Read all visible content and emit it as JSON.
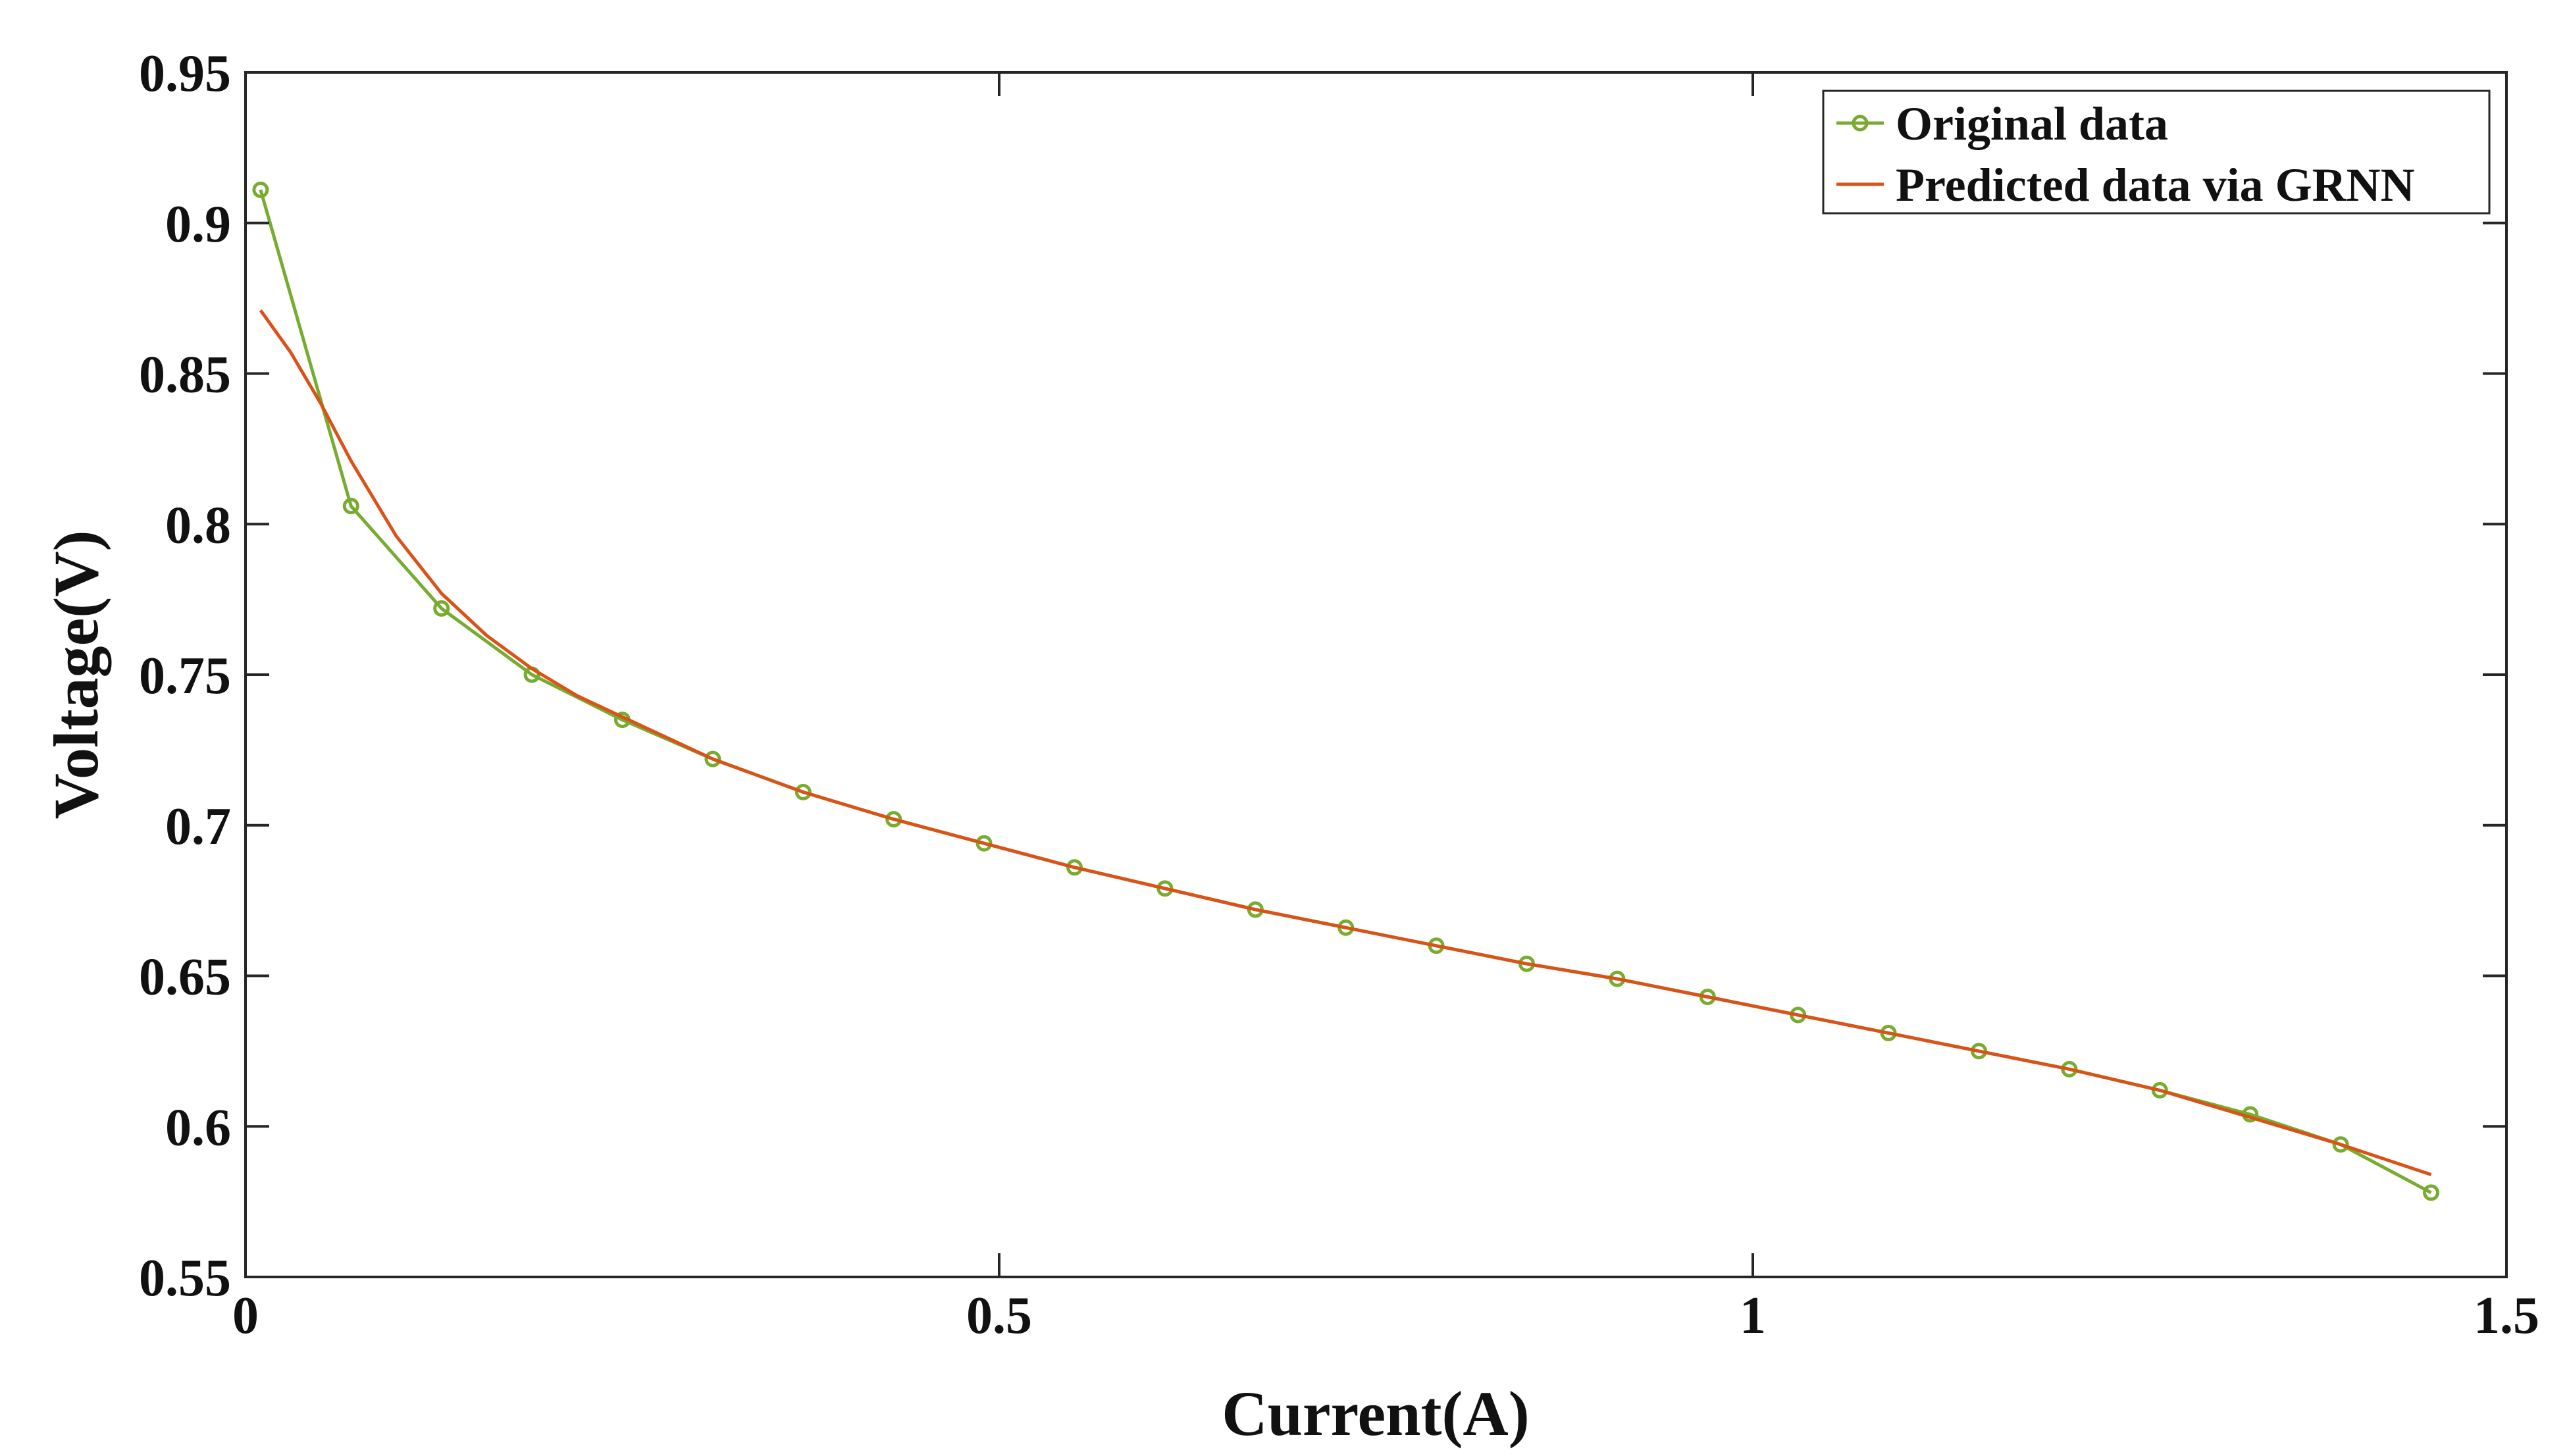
{
  "chart_data": {
    "type": "line",
    "title": "",
    "xlabel": "Current(A)",
    "ylabel": "Voltage(V)",
    "xlim": [
      0,
      1.5
    ],
    "ylim": [
      0.55,
      0.95
    ],
    "xticks": [
      0,
      0.5,
      1,
      1.5
    ],
    "xtick_labels": [
      "0",
      "0.5",
      "1",
      "1.5"
    ],
    "yticks": [
      0.55,
      0.6,
      0.65,
      0.7,
      0.75,
      0.8,
      0.85,
      0.9,
      0.95
    ],
    "ytick_labels": [
      "0.55",
      "0.6",
      "0.65",
      "0.7",
      "0.75",
      "0.8",
      "0.85",
      "0.9",
      "0.95"
    ],
    "grid": false,
    "box": true,
    "legend_position": "top-right",
    "series": [
      {
        "name": "Original data",
        "color": "#77AC30",
        "marker": "circle",
        "x": [
          0.01,
          0.07,
          0.13,
          0.19,
          0.25,
          0.31,
          0.37,
          0.43,
          0.49,
          0.55,
          0.61,
          0.67,
          0.73,
          0.79,
          0.85,
          0.91,
          0.97,
          1.03,
          1.09,
          1.15,
          1.21,
          1.27,
          1.33,
          1.39,
          1.45
        ],
        "y": [
          0.911,
          0.806,
          0.772,
          0.75,
          0.735,
          0.722,
          0.711,
          0.702,
          0.694,
          0.686,
          0.679,
          0.672,
          0.666,
          0.66,
          0.654,
          0.649,
          0.643,
          0.637,
          0.631,
          0.625,
          0.619,
          0.612,
          0.604,
          0.594,
          0.578
        ]
      },
      {
        "name": "Predicted data via GRNN",
        "color": "#D95319",
        "marker": "none",
        "x": [
          0.01,
          0.03,
          0.05,
          0.07,
          0.1,
          0.13,
          0.16,
          0.19,
          0.22,
          0.25,
          0.31,
          0.37,
          0.43,
          0.49,
          0.55,
          0.61,
          0.67,
          0.73,
          0.79,
          0.85,
          0.91,
          0.97,
          1.03,
          1.09,
          1.15,
          1.21,
          1.27,
          1.33,
          1.39,
          1.45
        ],
        "y": [
          0.871,
          0.857,
          0.84,
          0.821,
          0.796,
          0.777,
          0.763,
          0.752,
          0.743,
          0.736,
          0.722,
          0.711,
          0.702,
          0.694,
          0.686,
          0.679,
          0.672,
          0.666,
          0.66,
          0.654,
          0.649,
          0.643,
          0.637,
          0.631,
          0.625,
          0.619,
          0.612,
          0.603,
          0.594,
          0.584
        ]
      }
    ]
  }
}
